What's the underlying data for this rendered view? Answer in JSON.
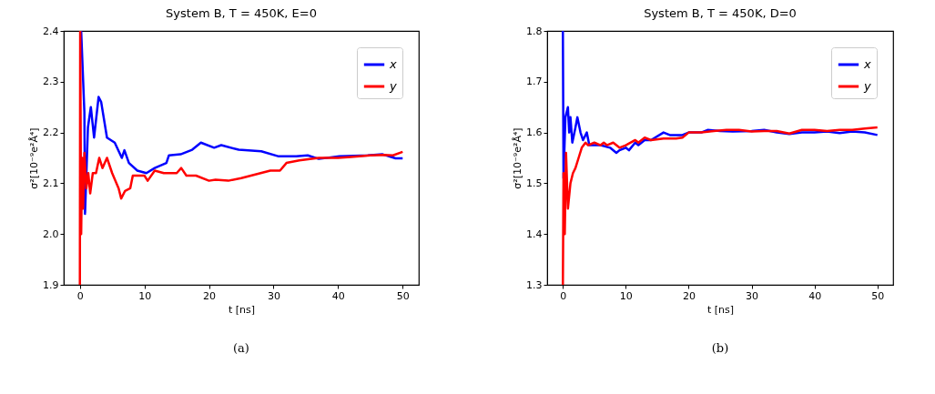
{
  "chart_data": [
    {
      "type": "line",
      "title": "System B, T = 450K, E=0",
      "xlabel": "t [ns]",
      "ylabel": "σ²[10⁻⁹e²Å⁴]",
      "xlim": [
        -2.5,
        52.5
      ],
      "ylim": [
        1.9,
        2.4
      ],
      "xticks": [
        0,
        10,
        20,
        30,
        40,
        50
      ],
      "yticks": [
        1.9,
        {
          "value": 2,
          "label": "2.0"
        },
        2.1,
        2.2,
        2.3,
        2.4
      ],
      "legend": "top right",
      "annotations": [
        "(a)"
      ],
      "series": [
        {
          "name": "x",
          "color": "#0000ff",
          "x": [
            0.2,
            0.7,
            0.8,
            1.25,
            1.7,
            2.2,
            2.9,
            3.3,
            4.2,
            5.4,
            6.5,
            6.9,
            7.6,
            8.9,
            10.3,
            11.6,
            13.4,
            13.8,
            15.6,
            17.4,
            18.75,
            20.8,
            21.9,
            24.6,
            28.1,
            30.8,
            33.5,
            35.3,
            37,
            40.2,
            44.6,
            46.9,
            48.9,
            50
          ],
          "values": [
            2.4,
            2.24,
            2.04,
            2.21,
            2.25,
            2.19,
            2.27,
            2.26,
            2.19,
            2.18,
            2.15,
            2.165,
            2.14,
            2.125,
            2.12,
            2.13,
            2.14,
            2.155,
            2.157,
            2.166,
            2.18,
            2.17,
            2.175,
            2.166,
            2.163,
            2.153,
            2.153,
            2.155,
            2.148,
            2.153,
            2.155,
            2.157,
            2.149,
            2.149
          ]
        },
        {
          "name": "y",
          "color": "#ff0000",
          "x": [
            0,
            0.05,
            0.2,
            0.35,
            0.5,
            0.7,
            1,
            1.3,
            1.6,
            2,
            2.5,
            3,
            3.5,
            4.2,
            5,
            6,
            6.4,
            7,
            7.8,
            8.2,
            9,
            10,
            10.5,
            11.6,
            13,
            15,
            15.7,
            16.5,
            18,
            20,
            21,
            23,
            25,
            26.5,
            28,
            29.5,
            31,
            32,
            34,
            37,
            40,
            42,
            45,
            47,
            48.5,
            50
          ],
          "values": [
            1.9,
            2.4,
            2.0,
            2.15,
            2.05,
            2.16,
            2.09,
            2.12,
            2.08,
            2.12,
            2.12,
            2.15,
            2.13,
            2.15,
            2.12,
            2.09,
            2.07,
            2.085,
            2.09,
            2.115,
            2.115,
            2.115,
            2.105,
            2.125,
            2.12,
            2.12,
            2.13,
            2.115,
            2.115,
            2.105,
            2.107,
            2.105,
            2.11,
            2.115,
            2.12,
            2.125,
            2.125,
            2.14,
            2.145,
            2.15,
            2.15,
            2.152,
            2.155,
            2.156,
            2.155,
            2.162
          ]
        }
      ]
    },
    {
      "type": "line",
      "title": "System B, T = 450K, D=0",
      "xlabel": "t [ns]",
      "ylabel": "σ²[10⁻⁹e²Å⁴]",
      "xlim": [
        -2.5,
        52.5
      ],
      "ylim": [
        1.3,
        1.8
      ],
      "xticks": [
        0,
        10,
        20,
        30,
        40,
        50
      ],
      "yticks": [
        1.3,
        1.4,
        1.5,
        1.6,
        1.7,
        1.8
      ],
      "legend": "top right",
      "annotations": [
        "(b)"
      ],
      "series": [
        {
          "name": "x",
          "color": "#0000ff",
          "x": [
            0,
            0.1,
            0.4,
            0.8,
            1,
            1.2,
            1.5,
            2,
            2.3,
            2.8,
            3.2,
            3.8,
            4.2,
            5,
            6,
            7.5,
            8.5,
            9,
            10,
            10.5,
            11.5,
            12,
            13,
            14,
            16,
            17,
            19,
            20,
            22,
            23,
            25,
            27,
            30,
            32,
            34,
            36,
            38,
            40,
            42,
            44,
            46,
            48,
            50
          ],
          "values": [
            1.8,
            1.51,
            1.63,
            1.65,
            1.6,
            1.63,
            1.58,
            1.61,
            1.63,
            1.6,
            1.585,
            1.6,
            1.575,
            1.575,
            1.575,
            1.57,
            1.56,
            1.565,
            1.57,
            1.565,
            1.58,
            1.575,
            1.585,
            1.585,
            1.6,
            1.595,
            1.595,
            1.6,
            1.6,
            1.605,
            1.603,
            1.602,
            1.603,
            1.605,
            1.6,
            1.597,
            1.6,
            1.6,
            1.602,
            1.599,
            1.602,
            1.6,
            1.595
          ]
        },
        {
          "name": "y",
          "color": "#ff0000",
          "x": [
            0,
            0.1,
            0.3,
            0.5,
            0.8,
            1.2,
            1.6,
            2,
            2.5,
            3,
            3.6,
            4,
            5,
            6,
            6.5,
            7,
            8,
            9,
            10,
            11.5,
            12,
            13,
            14,
            16,
            18,
            19,
            20,
            22,
            24,
            26,
            28,
            30,
            32,
            34,
            36,
            38,
            40,
            42,
            44,
            46,
            48,
            50
          ],
          "values": [
            1.3,
            1.52,
            1.4,
            1.56,
            1.45,
            1.5,
            1.52,
            1.53,
            1.55,
            1.57,
            1.58,
            1.575,
            1.58,
            1.575,
            1.58,
            1.575,
            1.58,
            1.57,
            1.575,
            1.585,
            1.58,
            1.59,
            1.585,
            1.588,
            1.588,
            1.59,
            1.6,
            1.6,
            1.603,
            1.605,
            1.605,
            1.602,
            1.603,
            1.603,
            1.598,
            1.605,
            1.605,
            1.603,
            1.605,
            1.605,
            1.608,
            1.61
          ]
        }
      ]
    }
  ]
}
